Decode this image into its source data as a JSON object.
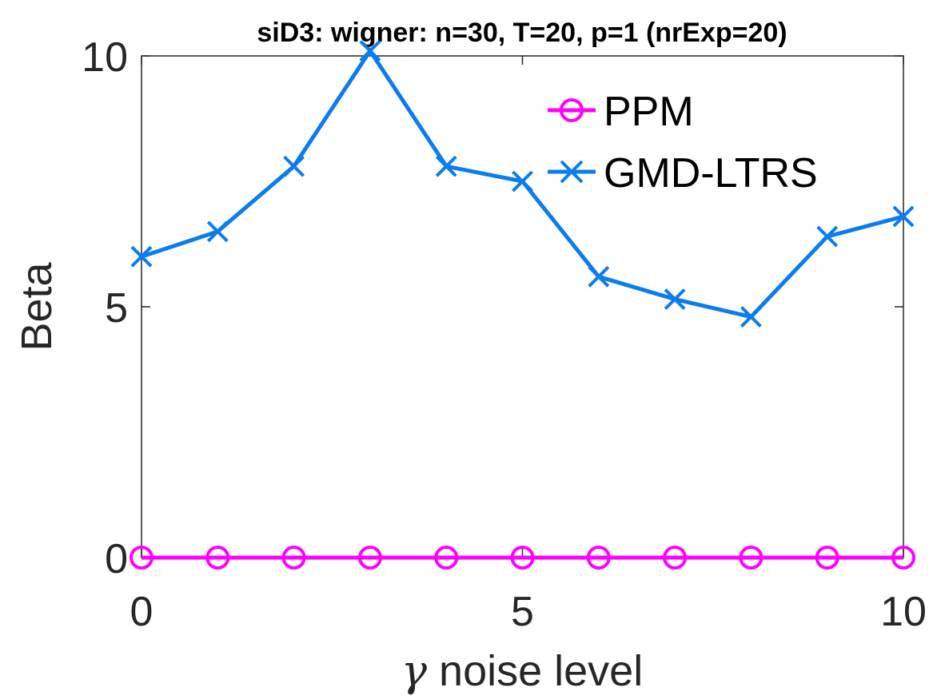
{
  "chart_data": {
    "type": "line",
    "title": "siD3: wigner: n=30, T=20, p=1 (nrExp=20)",
    "xlabel_symbol": "γ",
    "xlabel": " noise level",
    "ylabel": "Beta",
    "xlim": [
      0,
      10
    ],
    "ylim": [
      0,
      10
    ],
    "xticks": [
      "0",
      "5",
      "10"
    ],
    "yticks": [
      "0",
      "5",
      "10"
    ],
    "grid": false,
    "legend_position": "top-right",
    "x": [
      0,
      1,
      2,
      3,
      4,
      5,
      6,
      7,
      8,
      9,
      10
    ],
    "series": [
      {
        "name": "PPM",
        "color": "#ff00ff",
        "marker": "circle",
        "values": [
          0,
          0,
          0,
          0,
          0,
          0,
          0,
          0,
          0,
          0,
          0
        ]
      },
      {
        "name": "GMD-LTRS",
        "color": "#0a7cf0",
        "marker": "x",
        "values": [
          6.0,
          6.5,
          7.8,
          10.1,
          7.8,
          7.5,
          5.6,
          5.15,
          4.8,
          6.4,
          6.8
        ]
      }
    ]
  }
}
